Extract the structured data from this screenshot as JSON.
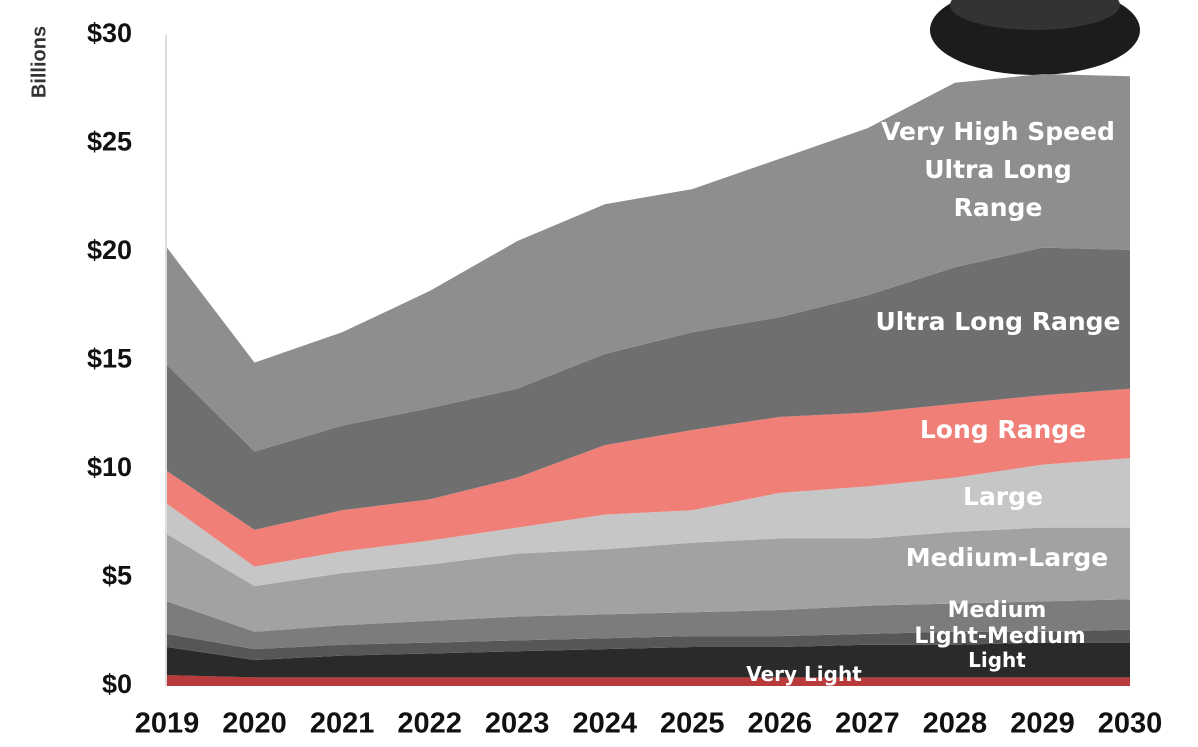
{
  "chart_data": {
    "type": "stacked-area",
    "y_label": "Billions",
    "categories": [
      "2019",
      "2020",
      "2021",
      "2022",
      "2023",
      "2024",
      "2025",
      "2026",
      "2027",
      "2028",
      "2029",
      "2030"
    ],
    "ylim": [
      0,
      30
    ],
    "yticks": [
      {
        "value": 0,
        "label": "$0"
      },
      {
        "value": 5,
        "label": "$5"
      },
      {
        "value": 10,
        "label": "$10"
      },
      {
        "value": 15,
        "label": "$15"
      },
      {
        "value": 20,
        "label": "$20"
      },
      {
        "value": 25,
        "label": "$25"
      },
      {
        "value": 30,
        "label": "$30"
      }
    ],
    "series": [
      {
        "name": "Very Light",
        "color": "#b83a3a",
        "values": [
          0.5,
          0.4,
          0.4,
          0.4,
          0.4,
          0.4,
          0.4,
          0.4,
          0.4,
          0.4,
          0.4,
          0.4
        ]
      },
      {
        "name": "Light",
        "color": "#2a2a2a",
        "values": [
          1.3,
          0.8,
          1.0,
          1.1,
          1.2,
          1.3,
          1.4,
          1.4,
          1.5,
          1.5,
          1.6,
          1.6
        ]
      },
      {
        "name": "Light-Medium",
        "color": "#575757",
        "values": [
          0.6,
          0.5,
          0.5,
          0.5,
          0.5,
          0.5,
          0.5,
          0.5,
          0.5,
          0.6,
          0.5,
          0.6
        ]
      },
      {
        "name": "Medium",
        "color": "#7c7c7c",
        "values": [
          1.5,
          0.8,
          0.9,
          1.0,
          1.1,
          1.1,
          1.1,
          1.2,
          1.3,
          1.3,
          1.4,
          1.4
        ]
      },
      {
        "name": "Medium-Large",
        "color": "#a2a2a2",
        "values": [
          3.1,
          2.1,
          2.4,
          2.6,
          2.9,
          3.0,
          3.2,
          3.3,
          3.1,
          3.3,
          3.4,
          3.3
        ]
      },
      {
        "name": "Large",
        "color": "#c6c6c6",
        "values": [
          1.4,
          0.9,
          1.0,
          1.1,
          1.2,
          1.6,
          1.5,
          2.1,
          2.4,
          2.5,
          2.9,
          3.2
        ]
      },
      {
        "name": "Long Range",
        "color": "#ef7f77",
        "values": [
          1.5,
          1.7,
          1.9,
          1.9,
          2.3,
          3.2,
          3.7,
          3.5,
          3.4,
          3.4,
          3.2,
          3.2
        ]
      },
      {
        "name": "Ultra Long Range",
        "color": "#6f6f6f",
        "values": [
          4.9,
          3.6,
          3.9,
          4.2,
          4.1,
          4.2,
          4.5,
          4.6,
          5.4,
          6.3,
          6.8,
          6.4
        ]
      },
      {
        "name": "Very High Speed Ultra Long Range",
        "color": "#8e8e8e",
        "values": [
          5.4,
          4.1,
          4.3,
          5.4,
          6.8,
          6.9,
          6.6,
          7.3,
          7.7,
          8.5,
          8.0,
          8.0
        ]
      }
    ]
  }
}
